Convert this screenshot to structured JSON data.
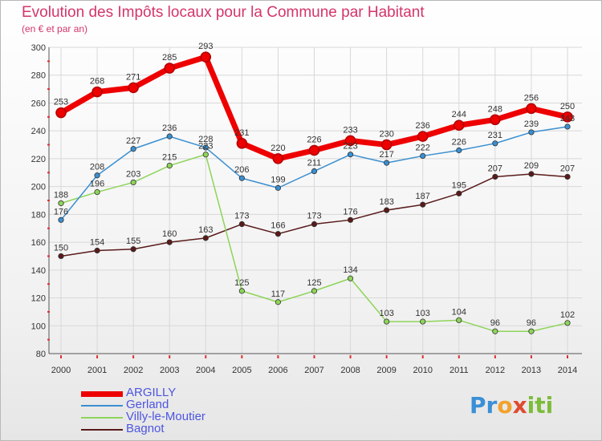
{
  "chart_data": {
    "type": "line",
    "title": "Evolution des Impôts locaux pour la Commune par Habitant",
    "subtitle": "(en € et par an)",
    "x": [
      "2000",
      "2001",
      "2002",
      "2003",
      "2004",
      "2005",
      "2006",
      "2007",
      "2008",
      "2009",
      "2010",
      "2011",
      "2012",
      "2013",
      "2014"
    ],
    "ylim": [
      80,
      300
    ],
    "yticks": [
      80,
      100,
      120,
      140,
      160,
      180,
      200,
      220,
      240,
      260,
      280,
      300
    ],
    "grid": true,
    "legend_position": "bottom-left",
    "series": [
      {
        "name": "ARGILLY",
        "color": "#ee0000",
        "values": [
          253,
          268,
          271,
          285,
          293,
          231,
          220,
          226,
          233,
          230,
          236,
          244,
          248,
          256,
          250
        ]
      },
      {
        "name": "Gerland",
        "color": "#3a8fd0",
        "values": [
          176,
          208,
          227,
          236,
          228,
          206,
          199,
          211,
          223,
          217,
          222,
          226,
          231,
          239,
          243
        ]
      },
      {
        "name": "Villy-le-Moutier",
        "color": "#8ed45a",
        "values": [
          188,
          196,
          203,
          215,
          223,
          125,
          117,
          125,
          134,
          103,
          103,
          104,
          96,
          96,
          102
        ]
      },
      {
        "name": "Bagnot",
        "color": "#5a1a1a",
        "values": [
          150,
          154,
          155,
          160,
          163,
          173,
          166,
          173,
          176,
          183,
          187,
          195,
          207,
          209,
          207
        ]
      }
    ],
    "value_labels": [
      [
        "253",
        "268",
        "271",
        "285",
        "293",
        "231",
        "220",
        "226",
        "233",
        "230",
        "236",
        "244",
        "248",
        "256",
        "250"
      ],
      [
        "176",
        "208",
        "227",
        "236",
        "228",
        "206",
        "199",
        "211",
        "223",
        "217",
        "222",
        "226",
        "231",
        "239",
        "243"
      ],
      [
        "188",
        "196",
        "203",
        "215",
        "223",
        "125",
        "117",
        "125",
        "134",
        "103",
        "103",
        "104",
        "96",
        "96",
        "102"
      ],
      [
        "150",
        "154",
        "155",
        "160",
        "163",
        "173",
        "166",
        "173",
        "176",
        "183",
        "187",
        "195",
        "207",
        "209",
        "207"
      ]
    ]
  },
  "logo": {
    "text": "Proxiti"
  }
}
